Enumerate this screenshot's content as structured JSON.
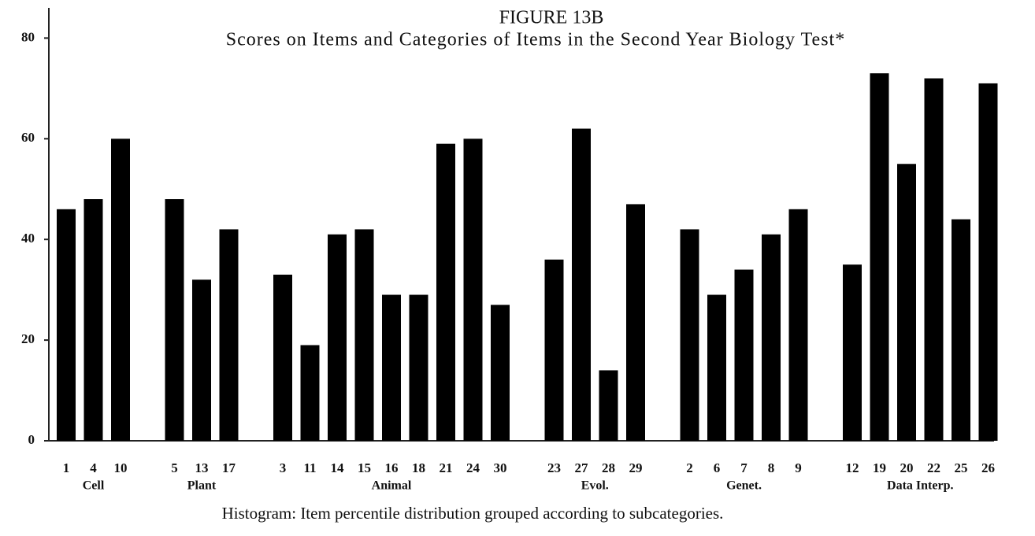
{
  "chart_data": {
    "type": "bar",
    "title": "FIGURE 13B",
    "subtitle": "Scores on Items and Categories of Items in the Second Year Biology Test*",
    "caption": "Histogram:  Item percentile distribution grouped according to subcategories.",
    "color": "#000000",
    "ylim": [
      0,
      86
    ],
    "yticks": [
      0,
      20,
      40,
      60,
      80
    ],
    "groups": [
      {
        "name": "Cell",
        "categories": [
          "1",
          "4",
          "10"
        ],
        "values": [
          46,
          48,
          60
        ]
      },
      {
        "name": "Plant",
        "categories": [
          "5",
          "13",
          "17"
        ],
        "values": [
          48,
          32,
          42
        ]
      },
      {
        "name": "Animal",
        "categories": [
          "3",
          "11",
          "14",
          "15",
          "16",
          "18",
          "21",
          "24",
          "30"
        ],
        "values": [
          33,
          19,
          41,
          42,
          29,
          29,
          59,
          60,
          27
        ]
      },
      {
        "name": "Evol.",
        "categories": [
          "23",
          "27",
          "28",
          "29"
        ],
        "values": [
          36,
          62,
          14,
          47
        ]
      },
      {
        "name": "Genet.",
        "categories": [
          "2",
          "6",
          "7",
          "8",
          "9"
        ],
        "values": [
          42,
          29,
          34,
          41,
          46
        ]
      },
      {
        "name": "Data Interp.",
        "categories": [
          "12",
          "19",
          "20",
          "22",
          "25",
          "26"
        ],
        "values": [
          35,
          73,
          55,
          72,
          44,
          71
        ]
      }
    ]
  }
}
